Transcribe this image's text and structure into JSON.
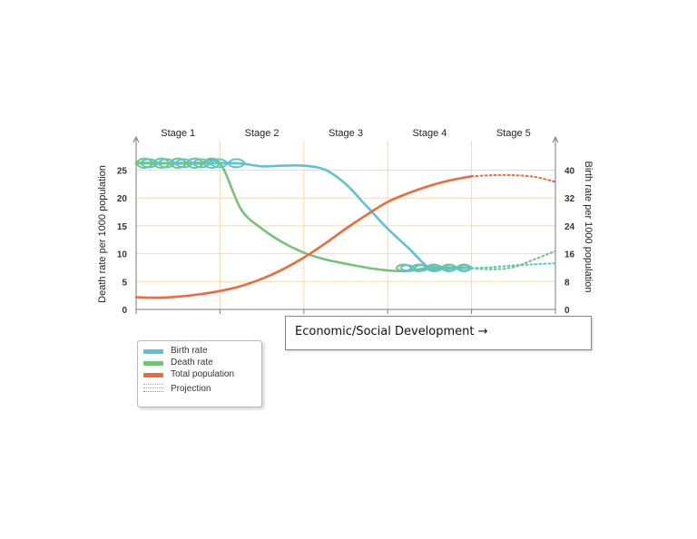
{
  "chart_data": {
    "type": "line",
    "stages": [
      "Stage 1",
      "Stage 2",
      "Stage 3",
      "Stage 4",
      "Stage 5"
    ],
    "xlabel": "Economic/Social Development →",
    "ylabel_left": "Death rate per 1000 population",
    "ylabel_right": "Birth rate per 1000 population",
    "left_ticks": [
      0,
      5,
      10,
      15,
      20,
      25
    ],
    "right_ticks": [
      0,
      8,
      16,
      24,
      32,
      40
    ],
    "ylim": [
      0,
      29
    ],
    "x": [
      0,
      0.25,
      0.5,
      0.75,
      1.0,
      1.25,
      1.5,
      1.75,
      2.0,
      2.25,
      2.5,
      2.75,
      3.0,
      3.25,
      3.5,
      3.75,
      4.0,
      4.25,
      4.5,
      4.75,
      5.0
    ],
    "series": [
      {
        "name": "Birth rate",
        "color": "#5bc4d4",
        "values": [
          26.3,
          26.2,
          26.3,
          26.2,
          26.3,
          26.2,
          25.7,
          25.8,
          25.8,
          25.1,
          22.5,
          18.5,
          14.5,
          11,
          7.5,
          7.4,
          7.5,
          7.4,
          7.5,
          7.4,
          7.4
        ],
        "projection": [
          7.4,
          7.6,
          7.9,
          8.1,
          8.3
        ]
      },
      {
        "name": "Death rate",
        "color": "#73c37a",
        "values": [
          26.3,
          26.3,
          26.2,
          26.3,
          26.2,
          18,
          14.5,
          12,
          10.2,
          9,
          8.2,
          7.5,
          7.0,
          6.9,
          7.5,
          7.5,
          7.5,
          7.5,
          7.5,
          7.5,
          7.4
        ],
        "projection": [
          7.4,
          7.2,
          7.6,
          9.0,
          10.5
        ]
      },
      {
        "name": "Total population",
        "color": "#ee6a3a",
        "values": [
          2.2,
          2.1,
          2.3,
          2.7,
          3.3,
          4.2,
          5.5,
          7.2,
          9.3,
          11.8,
          14.5,
          17.0,
          19.3,
          20.9,
          22.2,
          23.2,
          23.9,
          24.1,
          24.1,
          23.8,
          22.9
        ],
        "projection": [
          23.9,
          24.1,
          24.1,
          23.8,
          22.9
        ]
      }
    ],
    "legend": [
      "Birth rate",
      "Death rate",
      "Total population",
      "Projection"
    ],
    "legend_position": "bottom-left",
    "grid": true
  },
  "colors": {
    "grid": "#f5d9b0",
    "axis": "#7a7a7a"
  }
}
